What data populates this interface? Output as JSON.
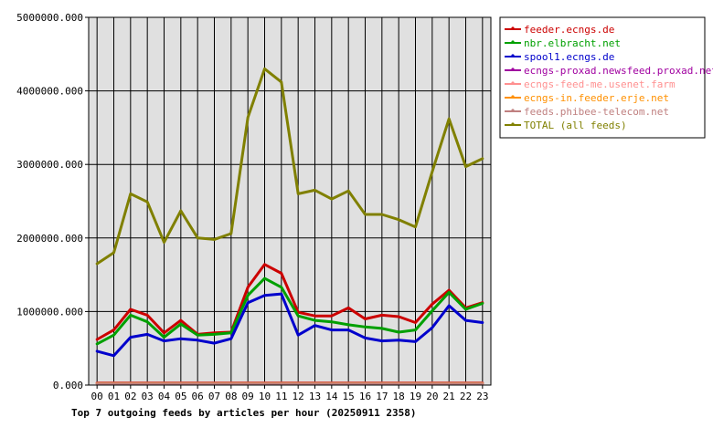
{
  "chart_data": {
    "type": "line",
    "title": "Top 7 outgoing feeds by articles per hour (20250911 2358)",
    "xlabel": "",
    "ylabel": "",
    "ylim": [
      0,
      5000000
    ],
    "y_ticks": [
      "0.000",
      "1000000.000",
      "2000000.000",
      "3000000.000",
      "4000000.000",
      "5000000.000"
    ],
    "grid": true,
    "legend_position": "right",
    "categories": [
      "00",
      "01",
      "02",
      "03",
      "04",
      "05",
      "06",
      "07",
      "08",
      "09",
      "10",
      "11",
      "12",
      "13",
      "14",
      "15",
      "16",
      "17",
      "18",
      "19",
      "20",
      "21",
      "22",
      "23"
    ],
    "series": [
      {
        "name": "feeder.ecngs.de",
        "color": "#cc0000",
        "values": [
          620000,
          750000,
          1030000,
          950000,
          710000,
          880000,
          690000,
          710000,
          720000,
          1330000,
          1640000,
          1520000,
          990000,
          940000,
          940000,
          1050000,
          900000,
          950000,
          930000,
          850000,
          1100000,
          1290000,
          1050000,
          1120000
        ]
      },
      {
        "name": "nbr.elbracht.net",
        "color": "#00a000",
        "values": [
          560000,
          680000,
          950000,
          860000,
          650000,
          830000,
          680000,
          690000,
          710000,
          1220000,
          1450000,
          1330000,
          940000,
          880000,
          860000,
          820000,
          790000,
          770000,
          720000,
          750000,
          1010000,
          1260000,
          1030000,
          1110000
        ]
      },
      {
        "name": "spool1.ecngs.de",
        "color": "#0000cc",
        "values": [
          460000,
          400000,
          650000,
          690000,
          600000,
          630000,
          610000,
          570000,
          630000,
          1120000,
          1220000,
          1240000,
          680000,
          810000,
          750000,
          750000,
          640000,
          600000,
          610000,
          590000,
          780000,
          1080000,
          880000,
          850000
        ]
      },
      {
        "name": "ecngs-proxad.newsfeed.proxad.net",
        "color": "#a000a0",
        "values": [
          30000,
          30000,
          30000,
          30000,
          30000,
          30000,
          30000,
          30000,
          30000,
          30000,
          30000,
          30000,
          30000,
          30000,
          30000,
          30000,
          30000,
          30000,
          30000,
          30000,
          30000,
          30000,
          30000,
          30000
        ]
      },
      {
        "name": "ecngs-feed-me.usenet.farm",
        "color": "#ff9090",
        "values": [
          20000,
          20000,
          20000,
          20000,
          20000,
          20000,
          20000,
          20000,
          20000,
          20000,
          20000,
          20000,
          20000,
          20000,
          20000,
          20000,
          20000,
          20000,
          20000,
          20000,
          20000,
          20000,
          20000,
          20000
        ]
      },
      {
        "name": "ecngs-in.feeder.erje.net",
        "color": "#ff9000",
        "values": [
          25000,
          25000,
          25000,
          25000,
          25000,
          25000,
          25000,
          25000,
          25000,
          25000,
          25000,
          25000,
          25000,
          25000,
          25000,
          25000,
          25000,
          25000,
          25000,
          25000,
          25000,
          25000,
          25000,
          25000
        ]
      },
      {
        "name": "feeds.phibee-telecom.net",
        "color": "#c08080",
        "values": [
          15000,
          15000,
          15000,
          15000,
          15000,
          15000,
          15000,
          15000,
          15000,
          15000,
          15000,
          15000,
          15000,
          15000,
          15000,
          15000,
          15000,
          15000,
          15000,
          15000,
          15000,
          15000,
          15000,
          15000
        ]
      },
      {
        "name": "TOTAL (all feeds)",
        "color": "#808000",
        "values": [
          1650000,
          1800000,
          2600000,
          2490000,
          1940000,
          2370000,
          2000000,
          1980000,
          2060000,
          3640000,
          4300000,
          4120000,
          2600000,
          2650000,
          2530000,
          2640000,
          2320000,
          2320000,
          2250000,
          2150000,
          2900000,
          3620000,
          2970000,
          3080000
        ]
      }
    ]
  }
}
